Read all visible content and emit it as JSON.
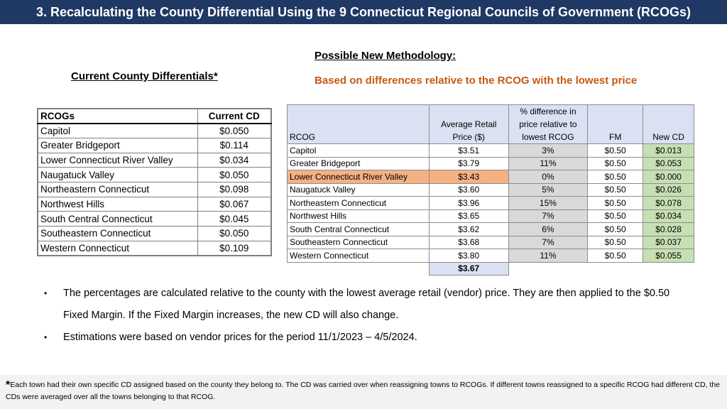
{
  "title": "3. Recalculating the County Differential Using the 9 Connecticut Regional Councils of Government (RCOGs)",
  "left": {
    "heading": "Current County Differentials*",
    "headers": [
      "RCOGs",
      "Current CD"
    ],
    "rows": [
      [
        "Capitol",
        "$0.050"
      ],
      [
        "Greater Bridgeport",
        "$0.114"
      ],
      [
        "Lower Connecticut River Valley",
        "$0.034"
      ],
      [
        "Naugatuck Valley",
        "$0.050"
      ],
      [
        "Northeastern Connecticut",
        "$0.098"
      ],
      [
        "Northwest Hills",
        "$0.067"
      ],
      [
        "South Central Connecticut",
        "$0.045"
      ],
      [
        "Southeastern Connecticut",
        "$0.050"
      ],
      [
        "Western Connecticut",
        "$0.109"
      ]
    ]
  },
  "right": {
    "heading": "Possible New Methodology:",
    "subheading": "Based on differences relative to the RCOG with the lowest price",
    "headers": [
      "RCOG",
      "Average Retail Price ($)",
      "% difference in price relative to lowest RCOG",
      "FM",
      "New CD"
    ],
    "rows": [
      [
        "Capitol",
        "$3.51",
        "3%",
        "$0.50",
        "$0.013"
      ],
      [
        "Greater Bridgeport",
        "$3.79",
        "11%",
        "$0.50",
        "$0.053"
      ],
      [
        "Lower Connecticut River Valley",
        "$3.43",
        "0%",
        "$0.50",
        "$0.000"
      ],
      [
        "Naugatuck Valley",
        "$3.60",
        "5%",
        "$0.50",
        "$0.026"
      ],
      [
        "Northeastern Connecticut",
        "$3.96",
        "15%",
        "$0.50",
        "$0.078"
      ],
      [
        "Northwest Hills",
        "$3.65",
        "7%",
        "$0.50",
        "$0.034"
      ],
      [
        "South Central Connecticut",
        "$3.62",
        "6%",
        "$0.50",
        "$0.028"
      ],
      [
        "Southeastern Connecticut",
        "$3.68",
        "7%",
        "$0.50",
        "$0.037"
      ],
      [
        "Western Connecticut",
        "$3.80",
        "11%",
        "$0.50",
        "$0.055"
      ]
    ],
    "average": "$3.67",
    "colors": {
      "header_bg": "#d9e1f2",
      "pct_bg": "#d9d9d9",
      "newcd_bg": "#c6e0b4",
      "highlight_bg": "#f4b183"
    }
  },
  "bullets": [
    "The percentages are calculated relative to the county with the lowest average retail (vendor) price. They are then applied to the $0.50 Fixed Margin. If the Fixed Margin increases, the new CD will also change.",
    "Estimations were based on vendor prices for the period 11/1/2023 – 4/5/2024."
  ],
  "footnote": {
    "marker": "*",
    "text": "Each town had their own specific CD assigned based on the county they belong to. The CD was carried over when reassigning towns to RCOGs. If different towns reassigned to a specific RCOG had different CD, the CDs were averaged over all the towns belonging to that RCOG."
  },
  "theme": {
    "title_bg": "#1f3864",
    "subheading_color": "#c55a11"
  }
}
